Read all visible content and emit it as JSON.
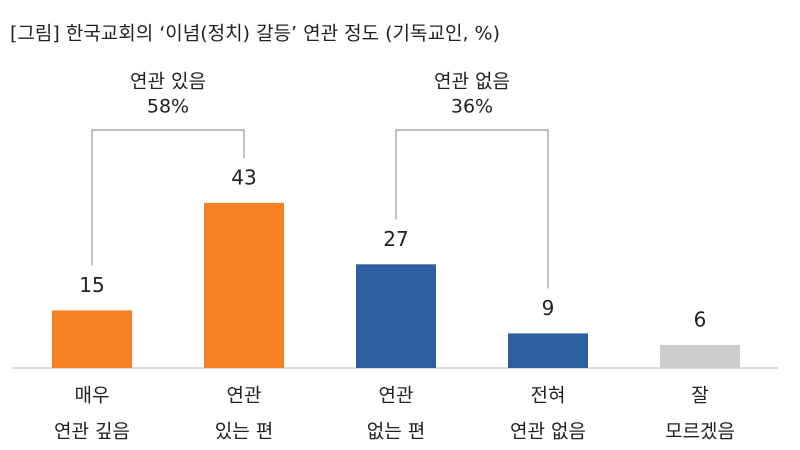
{
  "chart_data": {
    "type": "bar",
    "title": "[그림] 한국교회의 ‘이념(정치) 갈등’ 연관 정도 (기독교인, %)",
    "categories": [
      [
        "매우",
        "연관 깊음"
      ],
      [
        "연관",
        "있는 편"
      ],
      [
        "연관",
        "없는 편"
      ],
      [
        "전혀",
        "연관 없음"
      ],
      [
        "잘",
        "모르겠음"
      ]
    ],
    "values": [
      15,
      43,
      27,
      9,
      6
    ],
    "colors": [
      "#f58025",
      "#f58025",
      "#2e5e9f",
      "#2e5e9f",
      "#cccccc"
    ],
    "annotations": [
      [
        "연관 있음",
        "58%"
      ],
      [
        "연관 없음",
        "36%"
      ]
    ]
  }
}
